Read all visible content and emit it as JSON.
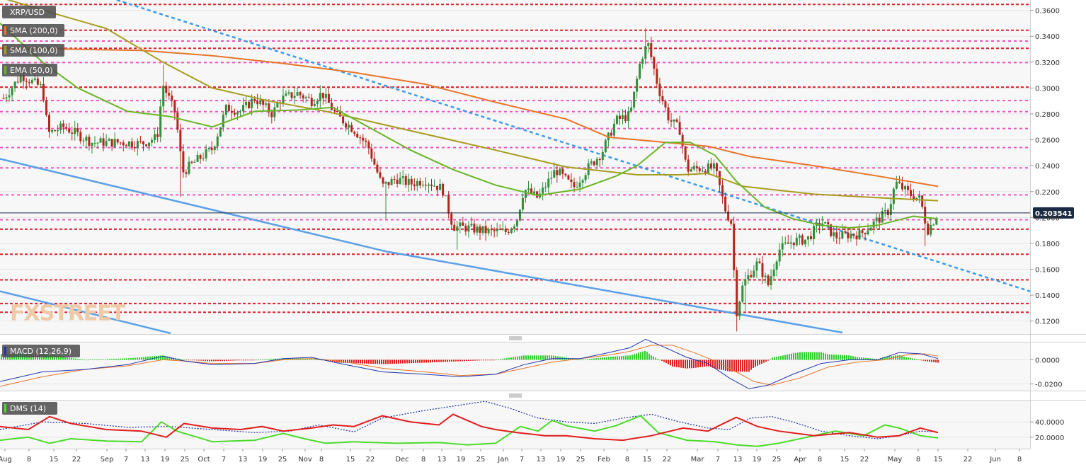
{
  "chart_data": [
    {
      "type": "candlestick",
      "title": "XRP/USD",
      "ylim": [
        0.11,
        0.368
      ],
      "y_ticks": [
        "0.3600",
        "0.3400",
        "0.3200",
        "0.3000",
        "0.2800",
        "0.2600",
        "0.2400",
        "0.2200",
        "0.2000",
        "0.1800",
        "0.1600",
        "0.1400",
        "0.1200"
      ],
      "x_ticks": [
        "Aug",
        "8",
        "15",
        "22",
        "Sep",
        "7",
        "13",
        "19",
        "25",
        "Oct",
        "7",
        "13",
        "19",
        "25",
        "Nov",
        "8",
        "15",
        "22",
        "Dec",
        "8",
        "13",
        "19",
        "25",
        "Jan",
        "7",
        "13",
        "19",
        "25",
        "Feb",
        "8",
        "15",
        "22",
        "Mar",
        "7",
        "13",
        "19",
        "25",
        "Apr",
        "8",
        "15",
        "22",
        "May",
        "8",
        "15",
        "22",
        "Jun",
        "8"
      ],
      "current_price": "0.203541",
      "watermark": "FXSTREET",
      "indicators": [
        {
          "name": "SMA (200,0)",
          "color": "#e8742a"
        },
        {
          "name": "SMA (100,0)",
          "color": "#a89c1f"
        },
        {
          "name": "EMA (50,0)",
          "color": "#6ab525"
        }
      ],
      "horizontal_levels": [
        {
          "value": 0.3646,
          "style": "red"
        },
        {
          "value": 0.3446,
          "style": "red"
        },
        {
          "value": 0.3363,
          "style": "pink"
        },
        {
          "value": 0.3307,
          "style": "red"
        },
        {
          "value": 0.3197,
          "style": "pink"
        },
        {
          "value": 0.3007,
          "style": "red"
        },
        {
          "value": 0.2903,
          "style": "pink"
        },
        {
          "value": 0.2818,
          "style": "pink"
        },
        {
          "value": 0.2687,
          "style": "pink"
        },
        {
          "value": 0.254,
          "style": "pink"
        },
        {
          "value": 0.2383,
          "style": "pink"
        },
        {
          "value": 0.2175,
          "style": "pink"
        },
        {
          "value": 0.1983,
          "style": "pink"
        },
        {
          "value": 0.191,
          "style": "red"
        },
        {
          "value": 0.1716,
          "style": "red"
        },
        {
          "value": 0.1518,
          "style": "red"
        },
        {
          "value": 0.1336,
          "style": "red"
        },
        {
          "value": 0.1268,
          "style": "red"
        }
      ]
    },
    {
      "type": "line",
      "title": "MACD (12,26,9)",
      "ylim": [
        -0.0255,
        0.0143
      ],
      "y_ticks": [
        "0.0000",
        "-0.0200"
      ]
    },
    {
      "type": "line",
      "title": "DMS (14)",
      "ylim": [
        5,
        68
      ],
      "y_ticks": [
        "40.0000",
        "20.0000"
      ]
    }
  ]
}
